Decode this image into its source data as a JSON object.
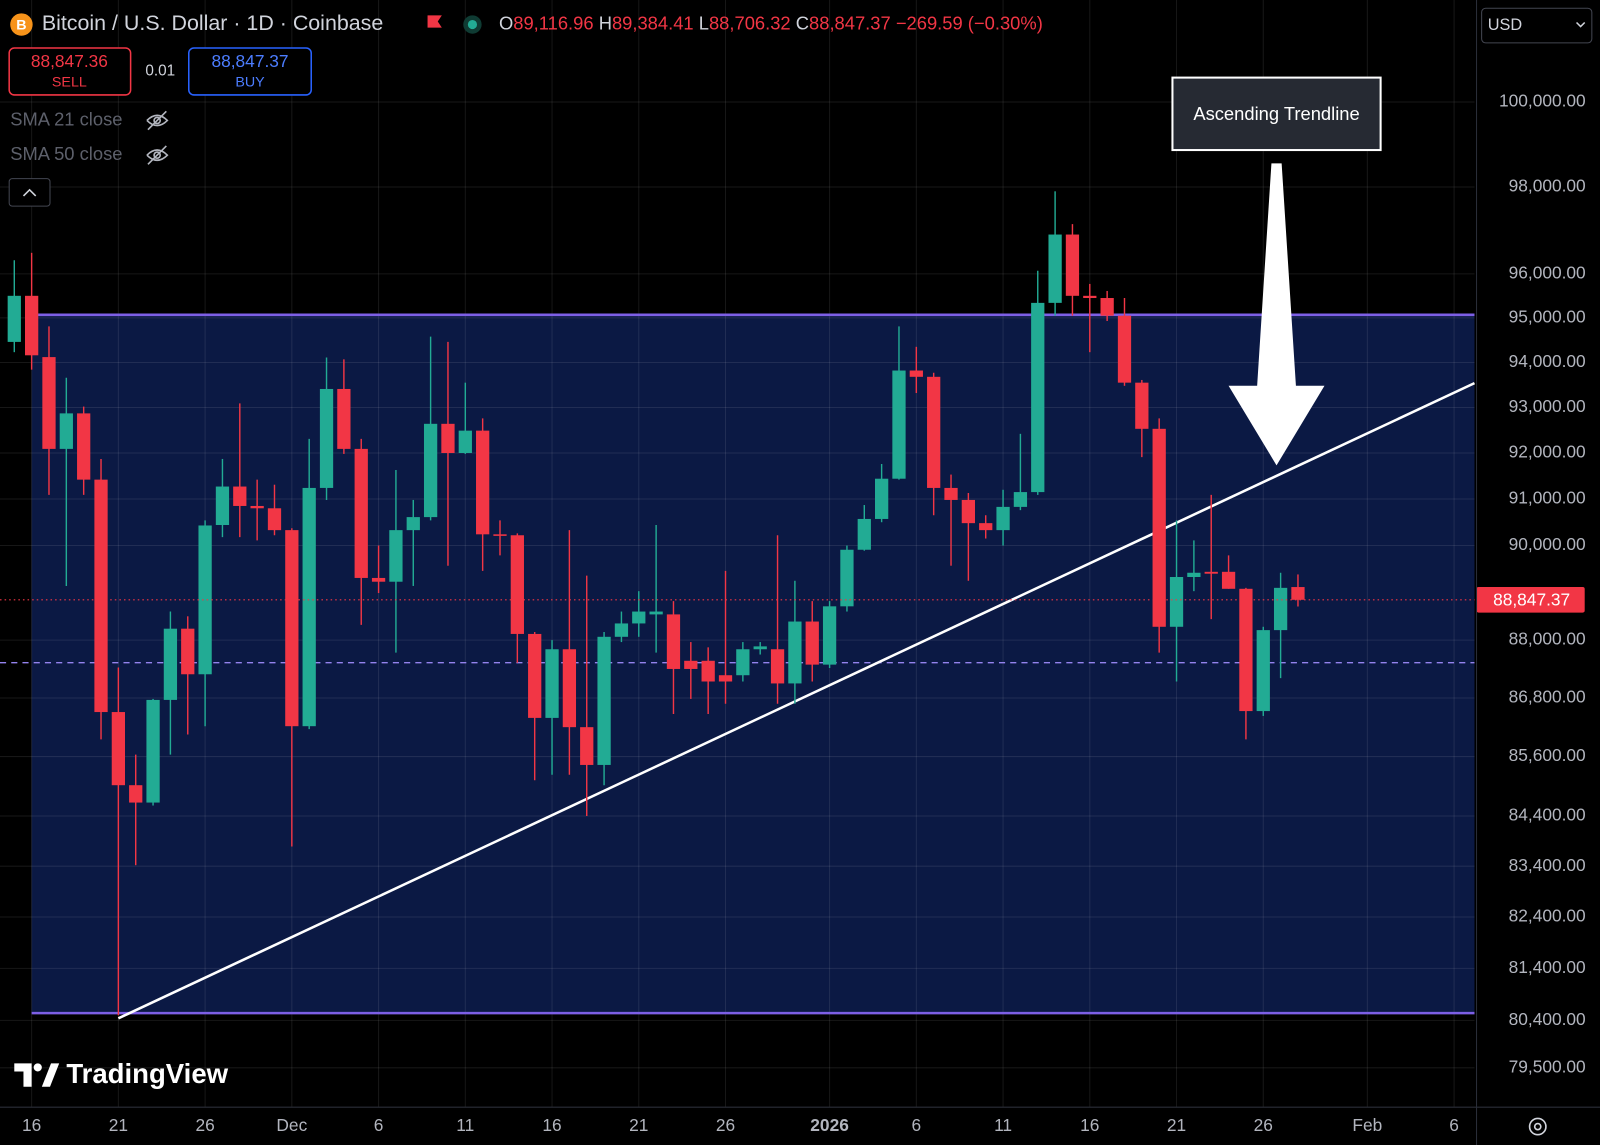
{
  "header": {
    "symbol": "Bitcoin / U.S. Dollar · 1D · Coinbase",
    "ohlc": [
      {
        "key": "O",
        "value": "89,116.96"
      },
      {
        "key": "H",
        "value": "89,384.41"
      },
      {
        "key": "L",
        "value": "88,706.32"
      },
      {
        "key": "C",
        "value": "88,847.37"
      }
    ],
    "change": "−269.59 (−0.30%)",
    "sell_price": "88,847.36",
    "sell": "SELL",
    "spread": "0.01",
    "buy_price": "88,847.37",
    "buy": "BUY",
    "indicators": [
      "SMA 21 close",
      "SMA 50 close"
    ],
    "currency": "USD",
    "logo": "TradingView",
    "annotation": "Ascending Trendline"
  },
  "chart_data": {
    "type": "candlestick",
    "log_scale": true,
    "grid": true,
    "up_color": "#22ab94",
    "down_color": "#f23645",
    "xlim": [
      "2025-11-14T04:14Z",
      "2026-02-07T04:14Z"
    ],
    "xticks": [
      {
        "value": "2025-11-16",
        "label": "16"
      },
      {
        "value": "2025-11-21",
        "label": "21"
      },
      {
        "value": "2025-11-26",
        "label": "26"
      },
      {
        "value": "2025-12-01",
        "label": "Dec"
      },
      {
        "value": "2025-12-06",
        "label": "6"
      },
      {
        "value": "2025-12-11",
        "label": "11"
      },
      {
        "value": "2025-12-16",
        "label": "16"
      },
      {
        "value": "2025-12-21",
        "label": "21"
      },
      {
        "value": "2025-12-26",
        "label": "26"
      },
      {
        "value": "2026-01-01",
        "label": "2026"
      },
      {
        "value": "2026-01-06",
        "label": "6"
      },
      {
        "value": "2026-01-11",
        "label": "11"
      },
      {
        "value": "2026-01-16",
        "label": "16"
      },
      {
        "value": "2026-01-21",
        "label": "21"
      },
      {
        "value": "2026-01-26",
        "label": "26"
      },
      {
        "value": "2026-02-01",
        "label": "Feb"
      },
      {
        "value": "2026-02-06",
        "label": "6"
      }
    ],
    "ylim": [
      78760,
      102450
    ],
    "yticks": [
      {
        "value": 100000,
        "label": "100,000.00"
      },
      {
        "value": 98000,
        "label": "98,000.00"
      },
      {
        "value": 96000,
        "label": "96,000.00"
      },
      {
        "value": 95000,
        "label": "95,000.00"
      },
      {
        "value": 94000,
        "label": "94,000.00"
      },
      {
        "value": 93000,
        "label": "93,000.00"
      },
      {
        "value": 92000,
        "label": "92,000.00"
      },
      {
        "value": 91000,
        "label": "91,000.00"
      },
      {
        "value": 90000,
        "label": "90,000.00"
      },
      {
        "value": 88000,
        "label": "88,000.00"
      },
      {
        "value": 86800,
        "label": "86,800.00"
      },
      {
        "value": 85600,
        "label": "85,600.00"
      },
      {
        "value": 84400,
        "label": "84,400.00"
      },
      {
        "value": 83400,
        "label": "83,400.00"
      },
      {
        "value": 82400,
        "label": "82,400.00"
      },
      {
        "value": 81400,
        "label": "81,400.00"
      },
      {
        "value": 80400,
        "label": "80,400.00"
      },
      {
        "value": 79500,
        "label": "79,500.00"
      }
    ],
    "x": [
      "2025-11-15",
      "2025-11-16",
      "2025-11-17",
      "2025-11-18",
      "2025-11-19",
      "2025-11-20",
      "2025-11-21",
      "2025-11-22",
      "2025-11-23",
      "2025-11-24",
      "2025-11-25",
      "2025-11-26",
      "2025-11-27",
      "2025-11-28",
      "2025-11-29",
      "2025-11-30",
      "2025-12-01",
      "2025-12-02",
      "2025-12-03",
      "2025-12-04",
      "2025-12-05",
      "2025-12-06",
      "2025-12-07",
      "2025-12-08",
      "2025-12-09",
      "2025-12-10",
      "2025-12-11",
      "2025-12-12",
      "2025-12-13",
      "2025-12-14",
      "2025-12-15",
      "2025-12-16",
      "2025-12-17",
      "2025-12-18",
      "2025-12-19",
      "2025-12-20",
      "2025-12-21",
      "2025-12-22",
      "2025-12-23",
      "2025-12-24",
      "2025-12-25",
      "2025-12-26",
      "2025-12-27",
      "2025-12-28",
      "2025-12-29",
      "2025-12-30",
      "2025-12-31",
      "2026-01-01",
      "2026-01-02",
      "2026-01-03",
      "2026-01-04",
      "2026-01-05",
      "2026-01-06",
      "2026-01-07",
      "2026-01-08",
      "2026-01-09",
      "2026-01-10",
      "2026-01-11",
      "2026-01-12",
      "2026-01-13",
      "2026-01-14",
      "2026-01-15",
      "2026-01-16",
      "2026-01-17",
      "2026-01-18",
      "2026-01-19",
      "2026-01-20",
      "2026-01-21",
      "2026-01-22",
      "2026-01-23",
      "2026-01-24",
      "2026-01-25",
      "2026-01-26",
      "2026-01-27",
      "2026-01-28"
    ],
    "open": [
      94460,
      95500,
      94120,
      92090,
      92870,
      91420,
      86510,
      85020,
      84670,
      86760,
      88240,
      87290,
      90440,
      91270,
      90850,
      90800,
      90330,
      86220,
      91240,
      93410,
      92090,
      89310,
      89230,
      90330,
      90610,
      92640,
      92000,
      92490,
      90240,
      90220,
      88130,
      86390,
      87810,
      86200,
      85430,
      88070,
      88350,
      88540,
      88540,
      87570,
      87570,
      87270,
      87270,
      87810,
      87810,
      87100,
      88390,
      87490,
      88710,
      89910,
      90570,
      91440,
      93820,
      93680,
      91240,
      90980,
      90480,
      90330,
      90830,
      91150,
      95340,
      96900,
      95500,
      95450,
      95050,
      93550,
      92530,
      88280,
      89330,
      89440,
      89440,
      89080,
      86530,
      88210,
      89116.96
    ],
    "high": [
      96310,
      96480,
      94810,
      93660,
      93020,
      91870,
      87430,
      85640,
      86780,
      88600,
      88500,
      90540,
      91870,
      93090,
      91420,
      91310,
      90370,
      92310,
      94110,
      94070,
      92310,
      90000,
      91630,
      90980,
      94580,
      94460,
      93550,
      92760,
      90540,
      90260,
      88170,
      88000,
      90330,
      89360,
      88170,
      88600,
      89030,
      90440,
      88820,
      87960,
      87850,
      89460,
      87960,
      87960,
      90220,
      89250,
      88820,
      88820,
      90000,
      90870,
      91760,
      94810,
      94350,
      93770,
      91530,
      91130,
      90650,
      91200,
      92420,
      96070,
      97900,
      97140,
      95770,
      95610,
      95450,
      93610,
      92760,
      90540,
      90110,
      91090,
      89790,
      89100,
      88280,
      89420,
      89384.41
    ],
    "low": [
      94230,
      93840,
      91090,
      89140,
      91090,
      85950,
      80500,
      83420,
      84610,
      85640,
      86050,
      86220,
      90180,
      90180,
      90110,
      90220,
      83790,
      86160,
      90980,
      91980,
      88320,
      88990,
      87740,
      89140,
      90540,
      89570,
      91980,
      89460,
      89790,
      87530,
      85120,
      85230,
      85230,
      84400,
      85020,
      87960,
      88070,
      87740,
      86470,
      86780,
      86470,
      86680,
      87140,
      87700,
      86680,
      86680,
      87140,
      87420,
      88600,
      89890,
      90500,
      91420,
      93320,
      90650,
      89570,
      89250,
      90150,
      90000,
      90760,
      91090,
      95050,
      95050,
      94230,
      94930,
      93480,
      91910,
      87740,
      87140,
      89030,
      88440,
      89080,
      85950,
      86430,
      87210,
      88706.32
    ],
    "close": [
      95500,
      94160,
      92090,
      92870,
      91420,
      86510,
      85020,
      84670,
      86760,
      88240,
      87290,
      90430,
      91270,
      90850,
      90800,
      90330,
      86220,
      91240,
      93410,
      92090,
      89310,
      89230,
      90330,
      90610,
      92640,
      92000,
      92490,
      90240,
      90220,
      88130,
      86390,
      87810,
      86200,
      85430,
      88070,
      88350,
      88600,
      88600,
      87400,
      87400,
      87140,
      87140,
      87810,
      87870,
      87100,
      88390,
      87490,
      88710,
      89910,
      90570,
      91440,
      93820,
      93680,
      91240,
      90980,
      90480,
      90330,
      90830,
      91150,
      95340,
      96900,
      95500,
      95450,
      95050,
      93550,
      92530,
      88280,
      89330,
      89420,
      89400,
      89080,
      86530,
      88210,
      89100,
      88847.37
    ],
    "box": {
      "start": "2025-11-16",
      "top": 95070,
      "bottom": 80540,
      "fill": "#0b1944",
      "line": "#7d5fe6"
    },
    "level": {
      "value": 87530,
      "color": "#9483ee"
    },
    "trendline": {
      "points": [
        [
          "2025-11-21",
          80440
        ],
        [
          "2026-01-28",
          91720
        ]
      ],
      "color": "#ffffff"
    },
    "last_price": {
      "value": 88847.37,
      "label": "88,847.37",
      "color": "#f23645"
    }
  }
}
